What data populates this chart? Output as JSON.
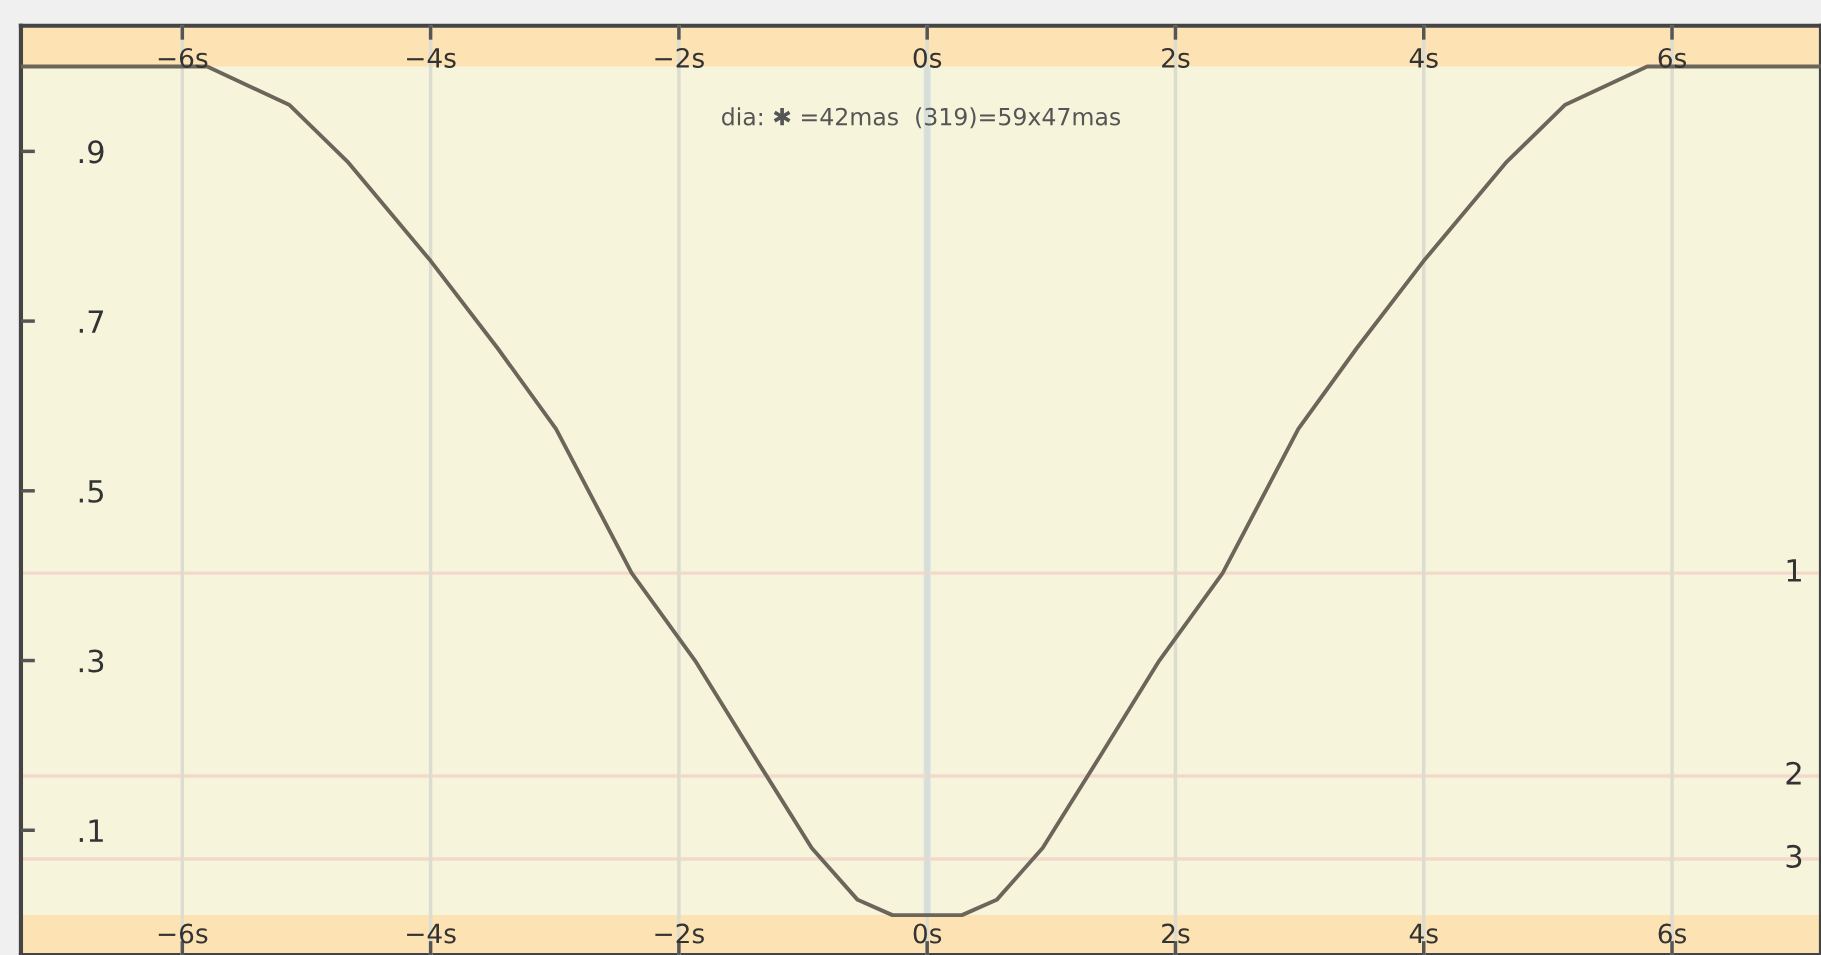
{
  "chart_data": {
    "type": "line",
    "annotations": [
      "dia: ✱ =42mas  (319)=59x47mas",
      {
        "text": "1",
        "y": 0.403
      },
      {
        "text": "2",
        "y": 0.164
      },
      {
        "text": "3",
        "y": 0.066
      }
    ],
    "x": [
      -7.3,
      -5.8,
      -5.14,
      -4.67,
      -4.0,
      -3.46,
      -2.99,
      -2.38,
      -1.87,
      -1.4,
      -0.93,
      -0.56,
      -0.28,
      0,
      0.28,
      0.56,
      0.93,
      1.4,
      1.87,
      2.38,
      2.99,
      3.46,
      4.0,
      4.67,
      5.14,
      5.8,
      7.2
    ],
    "series": [
      {
        "color": "#6b6659",
        "values": [
          1.0,
          1.0,
          0.955,
          0.888,
          0.771,
          0.668,
          0.573,
          0.403,
          0.3,
          0.189,
          0.079,
          0.018,
          0.0,
          0.0,
          0.0,
          0.018,
          0.079,
          0.189,
          0.3,
          0.403,
          0.573,
          0.668,
          0.771,
          0.888,
          0.955,
          1.0,
          1.0
        ]
      }
    ],
    "xlim": [
      -7.3,
      7.2
    ],
    "ylim": [
      -0.047,
      1.048
    ],
    "xticks": [
      {
        "value": -6,
        "label": "−6s"
      },
      {
        "value": -4,
        "label": "−4s"
      },
      {
        "value": -2,
        "label": "−2s"
      },
      {
        "value": 0,
        "label": "0s"
      },
      {
        "value": 2,
        "label": "2s"
      },
      {
        "value": 4,
        "label": "4s"
      },
      {
        "value": 6,
        "label": "6s"
      }
    ],
    "x2lim": [
      -7.3,
      7.2
    ],
    "x2ticks": [
      {
        "value": -6,
        "label": "−6s"
      },
      {
        "value": -4,
        "label": "−4s"
      },
      {
        "value": -2,
        "label": "−2s"
      },
      {
        "value": 0,
        "label": "0s"
      },
      {
        "value": 2,
        "label": "2s"
      },
      {
        "value": 4,
        "label": "4s"
      },
      {
        "value": 6,
        "label": "6s"
      }
    ],
    "yticks": [
      {
        "value": 0.9,
        "label": ".9"
      },
      {
        "value": 0.7,
        "label": ".7"
      },
      {
        "value": 0.5,
        "label": ".5"
      },
      {
        "value": 0.3,
        "label": ".3"
      },
      {
        "value": 0.1,
        "label": ".1"
      }
    ],
    "grid": "x",
    "ref_lines": [
      {
        "axis": "x",
        "value": 0,
        "color": "#cfe3e6"
      },
      {
        "axis": "y",
        "value": 0.403,
        "color": "#f3d9cc"
      },
      {
        "axis": "y",
        "value": 0.164,
        "color": "#f3d9cc"
      },
      {
        "axis": "y",
        "value": 0.066,
        "color": "#f3d9cc"
      }
    ],
    "bands": [
      {
        "axis": "y",
        "from": 1.0,
        "to": 1.048,
        "color": "#fde3b3"
      },
      {
        "axis": "y",
        "from": -0.047,
        "to": 0.0,
        "color": "#fde3b3"
      }
    ]
  }
}
